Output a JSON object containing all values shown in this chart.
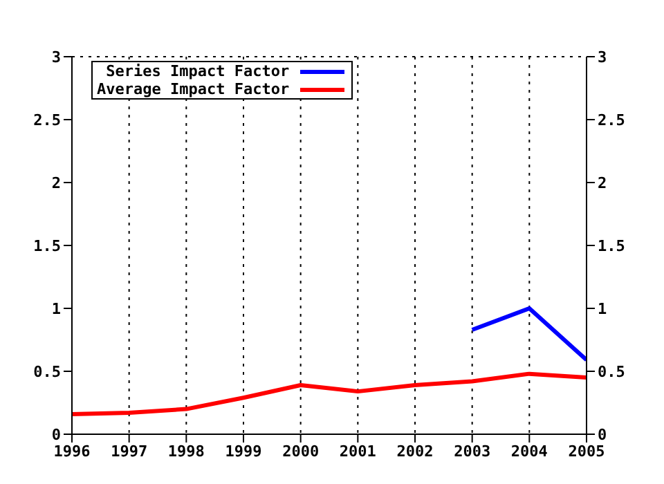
{
  "chart_data": {
    "type": "line",
    "categories": [
      "1996",
      "1997",
      "1998",
      "1999",
      "2000",
      "2001",
      "2002",
      "2003",
      "2004",
      "2005"
    ],
    "series": [
      {
        "name": "Series Impact Factor",
        "color": "#0000ff",
        "values": [
          null,
          null,
          null,
          null,
          null,
          null,
          null,
          0.83,
          1.0,
          0.59
        ]
      },
      {
        "name": "Average Impact Factor",
        "color": "#ff0000",
        "values": [
          0.16,
          0.17,
          0.2,
          0.29,
          0.39,
          0.34,
          0.39,
          0.42,
          0.48,
          0.45
        ]
      }
    ],
    "ylim": [
      0,
      3
    ],
    "yticks": [
      0,
      0.5,
      1,
      1.5,
      2,
      2.5,
      3
    ],
    "y2lim": [
      0,
      3
    ],
    "y2ticks": [
      0,
      0.5,
      1,
      1.5,
      2,
      2.5,
      3
    ],
    "grid": true,
    "legend": "top left",
    "marker": "none",
    "line_style": "solid"
  }
}
